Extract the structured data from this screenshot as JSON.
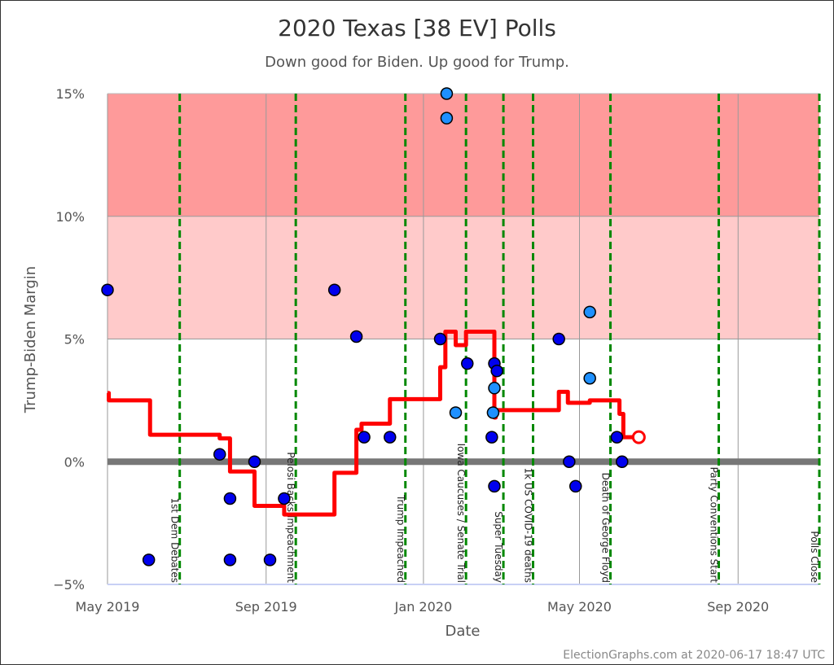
{
  "chart_data": {
    "type": "scatter",
    "title": "2020 Texas [38 EV] Polls",
    "subtitle": "Down good for Biden. Up good for Trump.",
    "xlabel": "Date",
    "ylabel": "Trump-Biden Margin",
    "xlim": [
      "2019-05-01",
      "2020-11-03"
    ],
    "ylim": [
      -5,
      15
    ],
    "y_ticks": [
      {
        "v": 15,
        "label": "15%"
      },
      {
        "v": 10,
        "label": "10%"
      },
      {
        "v": 5,
        "label": "5%"
      },
      {
        "v": 0,
        "label": "0%"
      },
      {
        "v": -5,
        "label": "−5%"
      }
    ],
    "x_ticks": [
      {
        "date": "2019-05-01",
        "label": "May 2019"
      },
      {
        "date": "2019-09-01",
        "label": "Sep 2019"
      },
      {
        "date": "2020-01-01",
        "label": "Jan 2020"
      },
      {
        "date": "2020-05-01",
        "label": "May 2020"
      },
      {
        "date": "2020-09-01",
        "label": "Sep 2020"
      }
    ],
    "grid": true,
    "bands": [
      {
        "from": 10,
        "to": 15,
        "color": "#fe9a9a"
      },
      {
        "from": 5,
        "to": 10,
        "color": "#ffcaca"
      }
    ],
    "events": [
      {
        "date": "2019-06-26",
        "label": "1st Dem Debates"
      },
      {
        "date": "2019-09-24",
        "label": "Pelosi Backs Impeachment"
      },
      {
        "date": "2019-12-18",
        "label": "Trump Impeached"
      },
      {
        "date": "2020-02-03",
        "label": "Iowa Caucuses / Senate Trial"
      },
      {
        "date": "2020-03-03",
        "label": "Super Tuesday"
      },
      {
        "date": "2020-03-26",
        "label": "1k US COVID-19 deaths"
      },
      {
        "date": "2020-05-25",
        "label": "Death of George Floyd"
      },
      {
        "date": "2020-08-17",
        "label": "Party Conventions Start"
      },
      {
        "date": "2020-11-03",
        "label": "Polls Close"
      }
    ],
    "polls": [
      {
        "date": "2019-05-01",
        "v": 7,
        "color": "#0000ee"
      },
      {
        "date": "2019-06-02",
        "v": -4,
        "color": "#0000ee"
      },
      {
        "date": "2019-07-27",
        "v": 0.3,
        "color": "#0000ee"
      },
      {
        "date": "2019-08-04",
        "v": -1.5,
        "color": "#0000ee"
      },
      {
        "date": "2019-08-04",
        "v": -4,
        "color": "#0000ee"
      },
      {
        "date": "2019-08-23",
        "v": 0,
        "color": "#0000ee"
      },
      {
        "date": "2019-09-04",
        "v": -4,
        "color": "#0000ee"
      },
      {
        "date": "2019-09-15",
        "v": -1.5,
        "color": "#0000ee"
      },
      {
        "date": "2019-10-24",
        "v": 7,
        "color": "#0000ee"
      },
      {
        "date": "2019-11-10",
        "v": 5.1,
        "color": "#0000ee"
      },
      {
        "date": "2019-11-16",
        "v": 1,
        "color": "#0000ee"
      },
      {
        "date": "2019-12-06",
        "v": 1,
        "color": "#0000ee"
      },
      {
        "date": "2020-01-14",
        "v": 5,
        "color": "#0000ee"
      },
      {
        "date": "2020-01-19",
        "v": 15,
        "color": "#1e90ff"
      },
      {
        "date": "2020-01-19",
        "v": 14,
        "color": "#1e90ff"
      },
      {
        "date": "2020-01-26",
        "v": 2,
        "color": "#1e90ff"
      },
      {
        "date": "2020-02-04",
        "v": 4,
        "color": "#0000ee"
      },
      {
        "date": "2020-02-25",
        "v": 4,
        "color": "#0000ee"
      },
      {
        "date": "2020-02-27",
        "v": 3.7,
        "color": "#0000ee"
      },
      {
        "date": "2020-02-25",
        "v": 3,
        "color": "#1e90ff"
      },
      {
        "date": "2020-02-24",
        "v": 2,
        "color": "#1e90ff"
      },
      {
        "date": "2020-02-23",
        "v": 1,
        "color": "#0000ee"
      },
      {
        "date": "2020-02-25",
        "v": -1,
        "color": "#0000ee"
      },
      {
        "date": "2020-04-15",
        "v": 5,
        "color": "#0000ee"
      },
      {
        "date": "2020-04-23",
        "v": 0,
        "color": "#0000ee"
      },
      {
        "date": "2020-04-28",
        "v": -1,
        "color": "#0000ee"
      },
      {
        "date": "2020-05-09",
        "v": 6.1,
        "color": "#1e90ff"
      },
      {
        "date": "2020-05-09",
        "v": 3.4,
        "color": "#1e90ff"
      },
      {
        "date": "2020-05-30",
        "v": 1,
        "color": "#0000ee"
      },
      {
        "date": "2020-06-03",
        "v": 0,
        "color": "#0000ee"
      }
    ],
    "average_line": {
      "color": "#ff0000",
      "steps": [
        [
          "2019-05-01",
          2.8
        ],
        [
          "2019-05-02",
          2.5
        ],
        [
          "2019-06-03",
          1.1
        ],
        [
          "2019-07-27",
          0.95
        ],
        [
          "2019-08-04",
          -0.4
        ],
        [
          "2019-08-23",
          -1.8
        ],
        [
          "2019-09-15",
          -2.15
        ],
        [
          "2019-10-24",
          -0.45
        ],
        [
          "2019-11-10",
          1.3
        ],
        [
          "2019-11-14",
          1.55
        ],
        [
          "2019-12-06",
          2.55
        ],
        [
          "2020-01-14",
          3.85
        ],
        [
          "2020-01-18",
          5.3
        ],
        [
          "2020-01-26",
          4.75
        ],
        [
          "2020-02-03",
          5.3
        ],
        [
          "2020-02-25",
          1.8
        ],
        [
          "2020-02-26",
          2.1
        ],
        [
          "2020-04-15",
          2.85
        ],
        [
          "2020-04-22",
          2.4
        ],
        [
          "2020-05-09",
          2.5
        ],
        [
          "2020-06-01",
          1.95
        ],
        [
          "2020-06-04",
          1.0
        ],
        [
          "2020-06-16",
          1.0
        ]
      ],
      "current": {
        "date": "2020-06-16",
        "v": 1.0
      }
    }
  },
  "footer": "ElectionGraphs.com at 2020-06-17 18:47 UTC"
}
